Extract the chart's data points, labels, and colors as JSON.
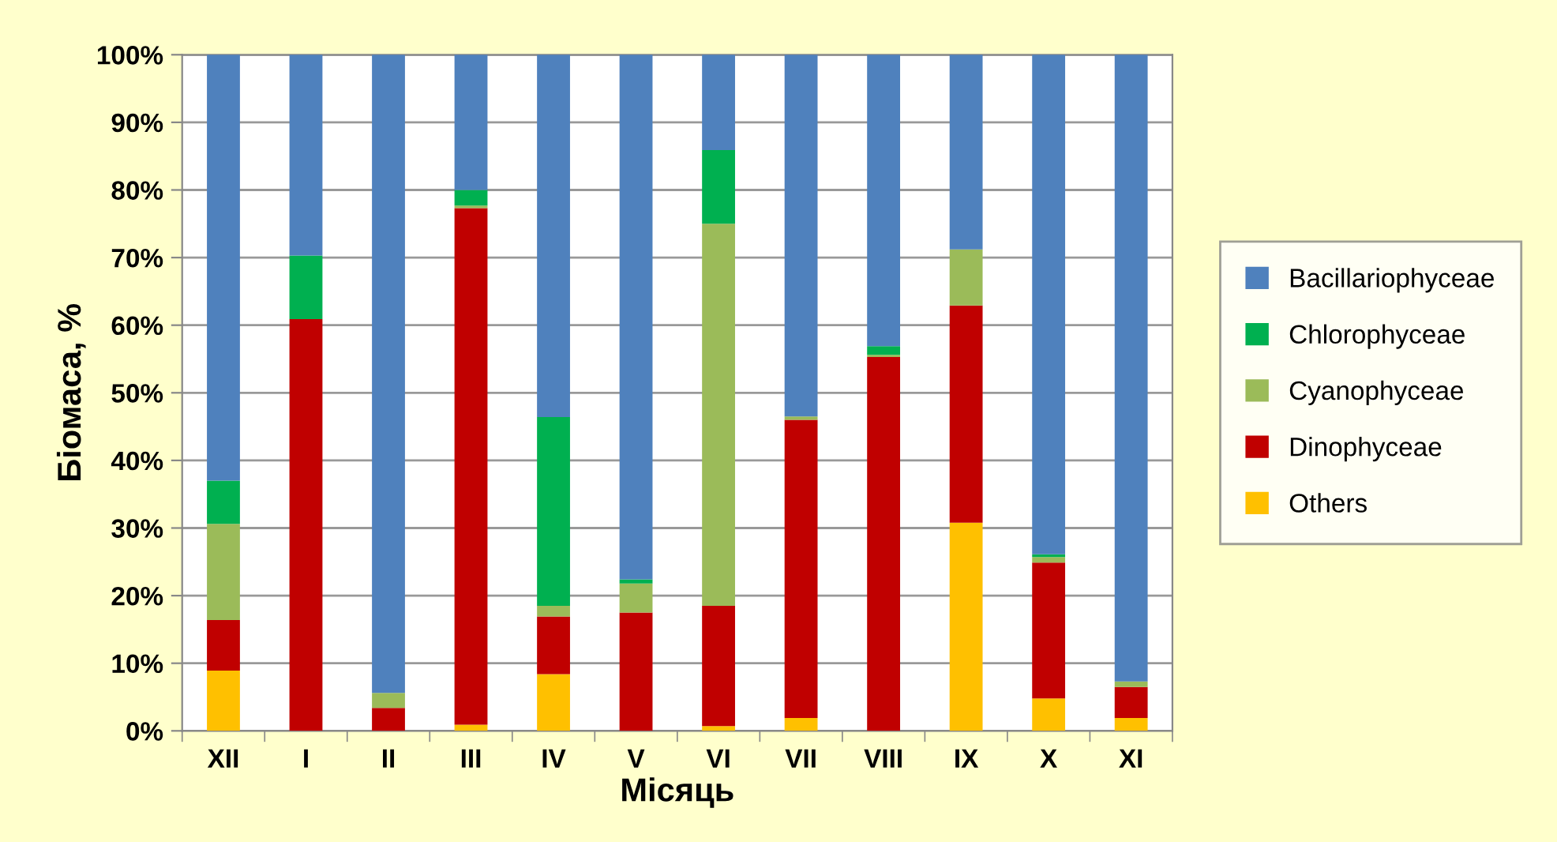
{
  "chart_data": {
    "type": "bar",
    "stacked": true,
    "xlabel": "Місяць",
    "ylabel": "Біомаса, %",
    "categories": [
      "XII",
      "I",
      "II",
      "III",
      "IV",
      "V",
      "VI",
      "VII",
      "VIII",
      "IX",
      "X",
      "XI"
    ],
    "series": [
      {
        "name": "Others",
        "color": "#ffc000",
        "values": [
          8.9,
          0,
          0,
          0.9,
          8.4,
          0,
          0.7,
          1.9,
          0,
          30.8,
          4.8,
          1.9
        ]
      },
      {
        "name": "Dinophyceae",
        "color": "#c00000",
        "values": [
          7.5,
          60.9,
          3.4,
          76.4,
          8.5,
          17.5,
          17.8,
          44.1,
          55.3,
          32.1,
          20.1,
          4.6
        ]
      },
      {
        "name": "Cyanophyceae",
        "color": "#9bbb59",
        "values": [
          14.2,
          0,
          2.2,
          0.4,
          1.6,
          4.3,
          56.5,
          0.5,
          0.3,
          8.3,
          0.8,
          0.8
        ]
      },
      {
        "name": "Chlorophyceae",
        "color": "#00b050",
        "values": [
          6.4,
          9.4,
          0,
          2.3,
          27.9,
          0.6,
          10.9,
          0,
          1.3,
          0,
          0.4,
          0
        ]
      },
      {
        "name": "Bacillariophyceae",
        "color": "#4f81bd",
        "values": [
          63,
          29.7,
          94.4,
          20,
          53.6,
          77.6,
          14.1,
          53.5,
          43.1,
          28.8,
          73.9,
          92.7
        ]
      }
    ],
    "ylim": [
      0,
      100
    ],
    "yticks": [
      {
        "value": 0,
        "label": "0%"
      },
      {
        "value": 10,
        "label": "10%"
      },
      {
        "value": 20,
        "label": "20%"
      },
      {
        "value": 30,
        "label": "30%"
      },
      {
        "value": 40,
        "label": "40%"
      },
      {
        "value": 50,
        "label": "50%"
      },
      {
        "value": 60,
        "label": "60%"
      },
      {
        "value": 70,
        "label": "70%"
      },
      {
        "value": 80,
        "label": "80%"
      },
      {
        "value": 90,
        "label": "90%"
      },
      {
        "value": 100,
        "label": "100%"
      }
    ],
    "grid": "y",
    "legend": "right"
  }
}
